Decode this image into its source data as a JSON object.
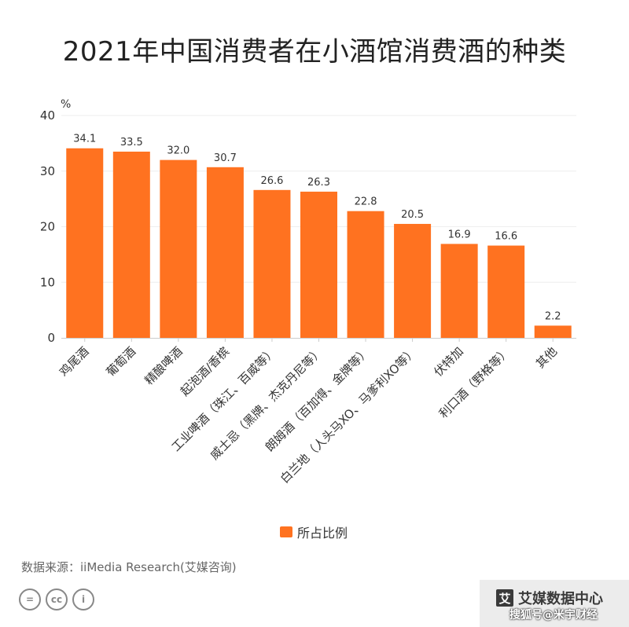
{
  "title": "2021年中国消费者在小酒馆消费酒的种类",
  "chart_data": {
    "type": "bar",
    "categories": [
      "鸡尾酒",
      "葡萄酒",
      "精酿啤酒",
      "起泡酒/香槟",
      "工业啤酒（珠江、百威等）",
      "威士忌（黑牌、杰克丹尼等）",
      "朗姆酒（百加得、金牌等）",
      "白兰地（人头马XO、马爹利XO等）",
      "伏特加",
      "利口酒（野格等）",
      "其他"
    ],
    "values": [
      34.1,
      33.5,
      32.0,
      30.7,
      26.6,
      26.3,
      22.8,
      20.5,
      16.9,
      16.6,
      2.2
    ],
    "value_labels": [
      "34.1",
      "33.5",
      "32.0",
      "30.7",
      "26.6",
      "26.3",
      "22.8",
      "20.5",
      "16.9",
      "16.6",
      "2.2"
    ],
    "y_ticks": [
      "0",
      "10",
      "20",
      "30",
      "40"
    ],
    "ylim": [
      0,
      40
    ],
    "ylabel": "%",
    "legend": [
      "所占比例"
    ],
    "bar_color": "#ff7220"
  },
  "source": "数据来源：iiMedia Research(艾媒咨询)",
  "brand": {
    "logo_glyph": "艾",
    "name": "艾媒数据中心",
    "watermark": "搜狐号@米宇财经"
  },
  "cc": [
    "=",
    "cc",
    "i"
  ]
}
